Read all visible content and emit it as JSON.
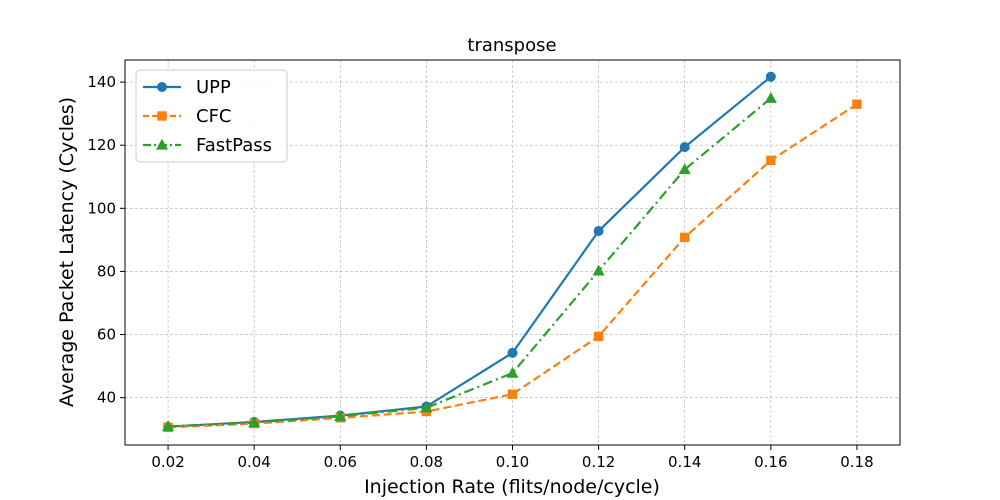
{
  "chart_data": {
    "type": "line",
    "title": "transpose",
    "xlabel": "Injection Rate (flits/node/cycle)",
    "ylabel": "Average Packet Latency (Cycles)",
    "xlim": [
      0.01,
      0.19
    ],
    "ylim": [
      25,
      147
    ],
    "xticks": [
      "0.02",
      "0.04",
      "0.06",
      "0.08",
      "0.10",
      "0.12",
      "0.14",
      "0.16",
      "0.18"
    ],
    "xtick_values": [
      0.02,
      0.04,
      0.06,
      0.08,
      0.1,
      0.12,
      0.14,
      0.16,
      0.18
    ],
    "yticks": [
      "40",
      "60",
      "80",
      "100",
      "120",
      "140"
    ],
    "ytick_values": [
      40,
      60,
      80,
      100,
      120,
      140
    ],
    "grid": true,
    "legend_position": "top-left",
    "series": [
      {
        "name": "UPP",
        "color": "#1f77b4",
        "linestyle": "solid",
        "marker": "circle",
        "x": [
          0.02,
          0.04,
          0.06,
          0.08,
          0.1,
          0.12,
          0.14,
          0.16
        ],
        "y": [
          30.8,
          32.3,
          34.3,
          37.2,
          54.2,
          92.8,
          119.4,
          141.7
        ]
      },
      {
        "name": "CFC",
        "color": "#ff7f0e",
        "linestyle": "dashed",
        "marker": "square",
        "x": [
          0.02,
          0.04,
          0.06,
          0.08,
          0.1,
          0.12,
          0.14,
          0.16,
          0.18
        ],
        "y": [
          30.6,
          31.8,
          33.6,
          35.6,
          41.1,
          59.4,
          90.8,
          115.2,
          133.0
        ]
      },
      {
        "name": "FastPass",
        "color": "#2ca02c",
        "linestyle": "dashdot",
        "marker": "triangle",
        "x": [
          0.02,
          0.04,
          0.06,
          0.08,
          0.1,
          0.12,
          0.14,
          0.16
        ],
        "y": [
          30.9,
          32.1,
          34.1,
          36.8,
          47.8,
          80.2,
          112.3,
          134.9
        ]
      }
    ]
  }
}
